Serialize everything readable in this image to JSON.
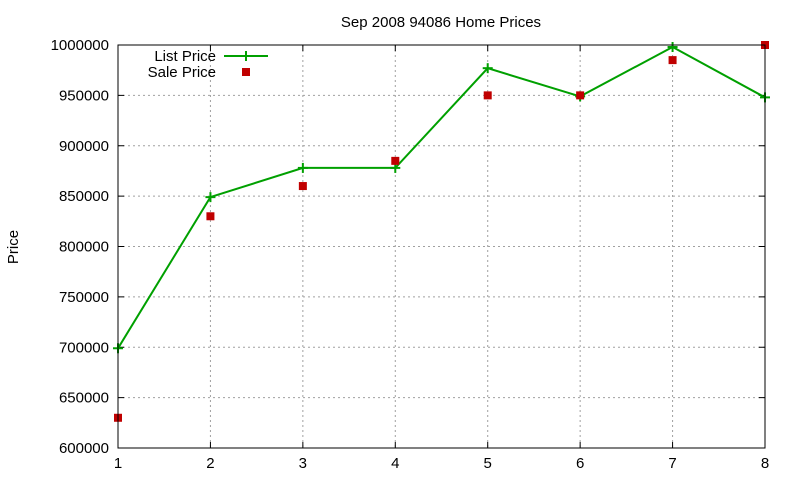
{
  "chart_data": {
    "type": "line",
    "title": "Sep 2008 94086 Home Prices",
    "xlabel": "",
    "ylabel": "Price",
    "x": [
      1,
      2,
      3,
      4,
      5,
      6,
      7,
      8
    ],
    "xlim": [
      1,
      8
    ],
    "ylim": [
      600000,
      1000000
    ],
    "yticks": [
      600000,
      650000,
      700000,
      750000,
      800000,
      850000,
      900000,
      950000,
      1000000
    ],
    "xticks": [
      1,
      2,
      3,
      4,
      5,
      6,
      7,
      8
    ],
    "grid": true,
    "legend_position": "top-left",
    "series": [
      {
        "name": "List Price",
        "style": "line-with-plus-markers",
        "color": "#00a000",
        "values": [
          699000,
          849000,
          878000,
          878000,
          977000,
          949000,
          998000,
          948000
        ]
      },
      {
        "name": "Sale Price",
        "style": "square-markers",
        "color": "#c00000",
        "values": [
          630000,
          830000,
          860000,
          885000,
          950000,
          950000,
          985000,
          1000000
        ]
      }
    ]
  }
}
